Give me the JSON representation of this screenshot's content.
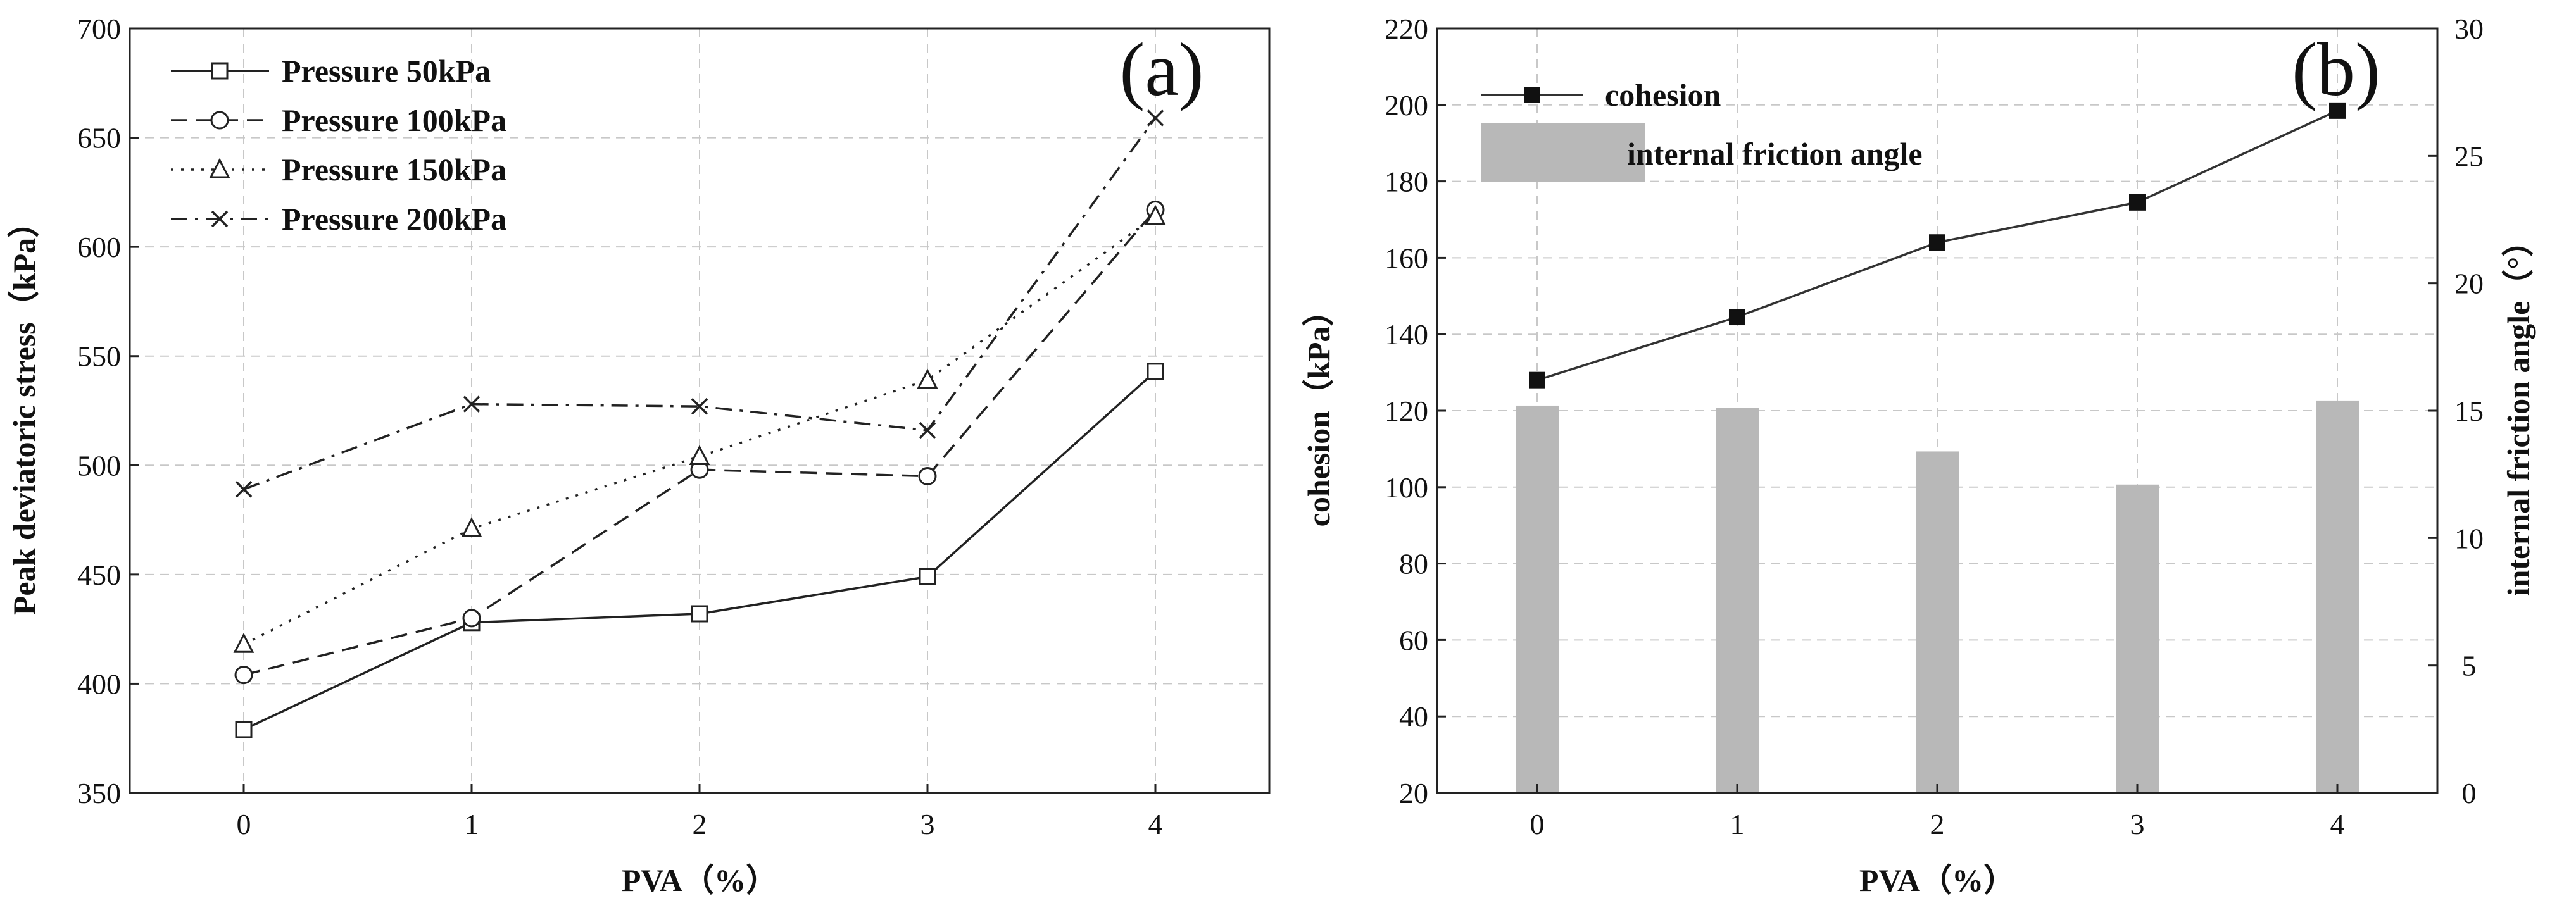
{
  "chart_data": [
    {
      "panel": "(a)",
      "type": "line",
      "xlabel": "PVA（%）",
      "ylabel": "Peak deviatoric stress（kPa）",
      "x": [
        0,
        1,
        2,
        3,
        4
      ],
      "x_ticks": [
        "0",
        "1",
        "2",
        "3",
        "4"
      ],
      "xlim": [
        -0.5,
        4.5
      ],
      "ylim": [
        350,
        700
      ],
      "y_ticks": [
        "350",
        "400",
        "450",
        "500",
        "550",
        "600",
        "650",
        "700"
      ],
      "grid": true,
      "legend_position": "top-left",
      "series": [
        {
          "name": "Pressure 50kPa",
          "values": [
            379,
            428,
            432,
            449,
            543
          ],
          "marker": "square",
          "dash": "solid"
        },
        {
          "name": "Pressure 100kPa",
          "values": [
            404,
            430,
            498,
            495,
            617
          ],
          "marker": "circle",
          "dash": "dashed"
        },
        {
          "name": "Pressure 150kPa",
          "values": [
            418,
            471,
            504,
            539,
            614
          ],
          "marker": "triangle",
          "dash": "dotted"
        },
        {
          "name": "Pressure 200kPa",
          "values": [
            489,
            528,
            527,
            516,
            659
          ],
          "marker": "x",
          "dash": "dashdot"
        }
      ]
    },
    {
      "panel": "(b)",
      "type": "bar+line",
      "xlabel": "PVA（%）",
      "ylabel_left": "cohesion（kPa）",
      "ylabel_right": "internal friction angle（°）",
      "x": [
        0,
        1,
        2,
        3,
        4
      ],
      "x_ticks": [
        "0",
        "1",
        "2",
        "3",
        "4"
      ],
      "xlim": [
        -0.5,
        4.5
      ],
      "ylim_left": [
        20,
        220
      ],
      "y_ticks_left": [
        "20",
        "40",
        "60",
        "80",
        "100",
        "120",
        "140",
        "160",
        "180",
        "200",
        "220"
      ],
      "ylim_right": [
        0,
        30
      ],
      "y_ticks_right": [
        "0",
        "5",
        "10",
        "15",
        "20",
        "25",
        "30"
      ],
      "grid": true,
      "legend_position": "top-left",
      "series": [
        {
          "name": "cohesion",
          "type": "line",
          "axis": "left",
          "values": [
            128,
            144.5,
            164,
            174.5,
            198.5
          ],
          "marker": "filled-square"
        },
        {
          "name": "internal friction angle",
          "type": "bar",
          "axis": "right",
          "values": [
            15.2,
            15.1,
            13.4,
            12.1,
            15.4
          ],
          "color": "#b8b8b8"
        }
      ]
    }
  ]
}
